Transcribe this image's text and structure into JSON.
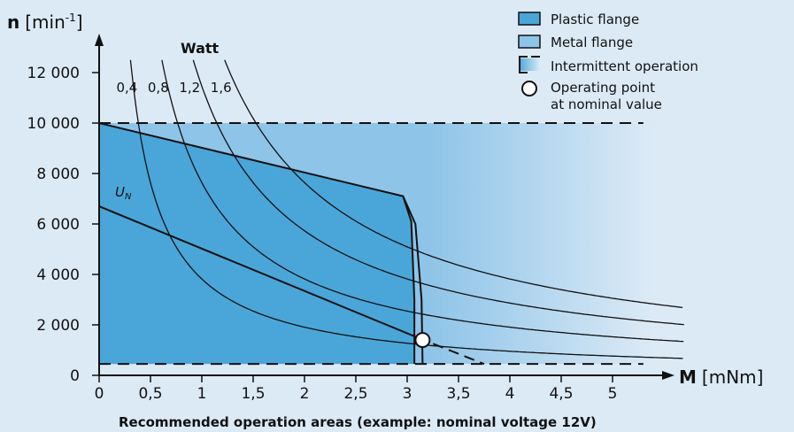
{
  "chart_data": {
    "type": "line",
    "caption": "Recommended operation areas (example: nominal voltage 12V)",
    "y_axis": {
      "symbol": "n",
      "unit_open": "[min",
      "unit_sup": "-1",
      "unit_close": "]",
      "ticks": [
        0,
        2000,
        4000,
        6000,
        8000,
        10000,
        12000
      ],
      "tick_labels": [
        "0",
        "2 000",
        "4 000",
        "6 000",
        "8 000",
        "10 000",
        "12 000"
      ],
      "range": [
        0,
        12800
      ]
    },
    "x_axis": {
      "symbol": "M",
      "unit": "[mNm]",
      "ticks": [
        0,
        0.5,
        1,
        1.5,
        2,
        2.5,
        3,
        3.5,
        4,
        4.5,
        5
      ],
      "tick_labels": [
        "0",
        "0,5",
        "1",
        "1,5",
        "2",
        "2,5",
        "3",
        "3,5",
        "4",
        "4,5",
        "5"
      ],
      "range": [
        0,
        5.7
      ]
    },
    "power_curves": {
      "title": "Watt",
      "unit": "W",
      "series": [
        {
          "name": "0,4",
          "power": 0.4
        },
        {
          "name": "0,8",
          "power": 0.8
        },
        {
          "name": "1,2",
          "power": 1.2
        },
        {
          "name": "1,6",
          "power": 1.6
        }
      ]
    },
    "plastic_flange_area": {
      "points": [
        [
          0,
          10000
        ],
        [
          2.96,
          7100
        ],
        [
          3.04,
          6100
        ],
        [
          3.07,
          3000
        ],
        [
          3.07,
          450
        ],
        [
          0,
          450
        ]
      ]
    },
    "metal_flange_boundary": {
      "points": [
        [
          2.96,
          7100
        ],
        [
          3.08,
          6000
        ],
        [
          3.14,
          3000
        ],
        [
          3.15,
          450
        ]
      ]
    },
    "intermittent_operation": {
      "speed_limit": 10000,
      "min_speed": 450,
      "x_extent": 5.3,
      "fade_from": 3.2,
      "fade_to": 5.4
    },
    "nominal_voltage_line": {
      "label": "U",
      "subscript": "N",
      "points": [
        [
          0,
          6700
        ],
        [
          3.1,
          1500
        ]
      ]
    },
    "extension_line": {
      "points": [
        [
          3.1,
          1500
        ],
        [
          3.75,
          450
        ]
      ]
    },
    "operating_point": {
      "x": 3.15,
      "y": 1400
    },
    "legend": [
      {
        "key": "plastic",
        "label": "Plastic flange",
        "color": "#4aa6d8"
      },
      {
        "key": "metal",
        "label": "Metal flange",
        "color": "#8ec4e8"
      },
      {
        "key": "intermittent",
        "label": "Intermittent operation",
        "color": "#6fb2e0"
      },
      {
        "key": "operating",
        "label_lines": [
          "Operating point",
          "at nominal value"
        ],
        "color": "#ffffff"
      }
    ]
  }
}
